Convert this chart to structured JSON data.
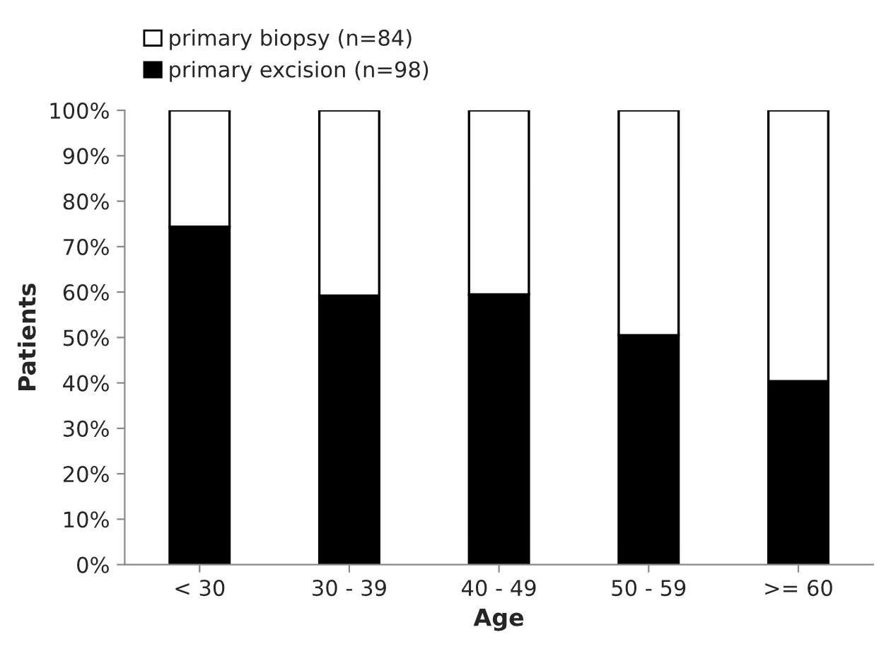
{
  "chart_data": {
    "type": "bar",
    "stacked": true,
    "xlabel": "Age",
    "ylabel": "Patients",
    "categories": [
      "< 30",
      "30 - 39",
      "40 - 49",
      "50 - 59",
      ">= 60"
    ],
    "series": [
      {
        "name": "primary excision (n=98)",
        "color": "#000000",
        "values": [
          74.4,
          59.2,
          59.5,
          50.5,
          40.4
        ]
      },
      {
        "name": "primary biopsy (n=84)",
        "color": "#ffffff",
        "values": [
          25.6,
          40.8,
          40.5,
          49.5,
          59.6
        ]
      }
    ],
    "ylim": [
      0,
      100
    ],
    "yticks": [
      {
        "value": 0,
        "label": "0%"
      },
      {
        "value": 10,
        "label": "10%"
      },
      {
        "value": 20,
        "label": "20%"
      },
      {
        "value": 30,
        "label": "30%"
      },
      {
        "value": 40,
        "label": "40%"
      },
      {
        "value": 50,
        "label": "50%"
      },
      {
        "value": 60,
        "label": "60%"
      },
      {
        "value": 70,
        "label": "70%"
      },
      {
        "value": 80,
        "label": "80%"
      },
      {
        "value": 90,
        "label": "90%"
      },
      {
        "value": 100,
        "label": "100%"
      }
    ],
    "legend": "top left",
    "grid": false
  }
}
